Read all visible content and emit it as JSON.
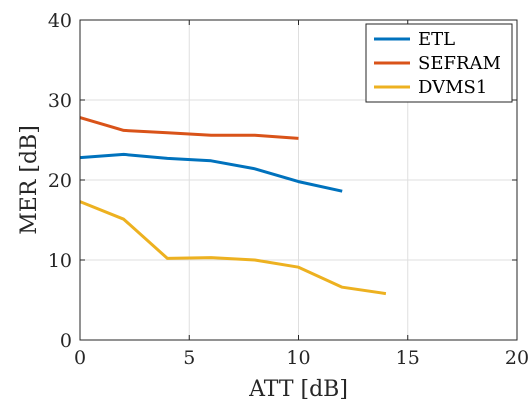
{
  "chart_data": {
    "type": "line",
    "xlabel": "ATT [dB]",
    "ylabel": "MER [dB]",
    "xlim": [
      0,
      20
    ],
    "ylim": [
      0,
      40
    ],
    "xticks": [
      0,
      5,
      10,
      15,
      20
    ],
    "yticks": [
      0,
      10,
      20,
      30,
      40
    ],
    "grid": true,
    "legend_position": "top-right",
    "series": [
      {
        "name": "ETL",
        "color": "#0072BD",
        "x": [
          0,
          2,
          4,
          6,
          8,
          10,
          12
        ],
        "y": [
          22.8,
          23.2,
          22.7,
          22.4,
          21.4,
          19.8,
          18.6
        ]
      },
      {
        "name": "SEFRAM",
        "color": "#D95319",
        "x": [
          0,
          2,
          4,
          6,
          8,
          10
        ],
        "y": [
          27.8,
          26.2,
          25.9,
          25.6,
          25.6,
          25.2
        ]
      },
      {
        "name": "DVMS1",
        "color": "#EDB120",
        "x": [
          0,
          2,
          4,
          6,
          8,
          10,
          12,
          14
        ],
        "y": [
          17.3,
          15.1,
          10.2,
          10.3,
          10.0,
          9.1,
          6.6,
          5.8
        ]
      }
    ]
  }
}
